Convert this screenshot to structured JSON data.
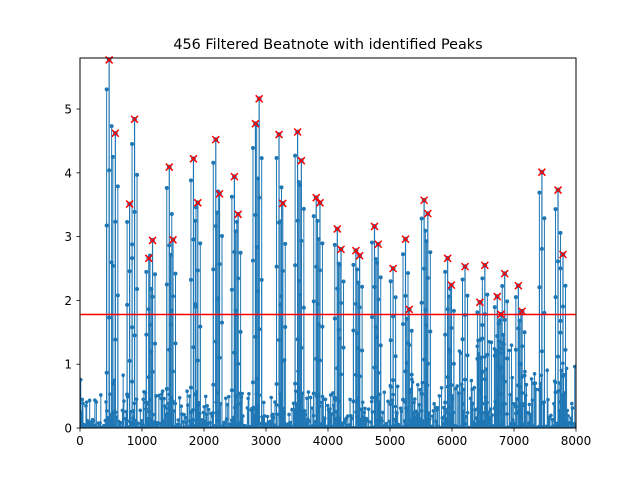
{
  "chart_data": {
    "type": "stem",
    "title": "456 Filtered Beatnote with identified Peaks",
    "xlabel": "",
    "ylabel": "",
    "xlim": [
      0,
      8000
    ],
    "ylim": [
      0,
      5.8
    ],
    "xticks": [
      0,
      1000,
      2000,
      3000,
      4000,
      5000,
      6000,
      7000,
      8000
    ],
    "yticks": [
      0,
      1,
      2,
      3,
      4,
      5
    ],
    "threshold": 1.78,
    "grid": false,
    "legend": "none",
    "colors": {
      "stem": "#1f77b4",
      "threshold": "#ff0000",
      "peak_marker": "#ff0000"
    },
    "peaks": [
      {
        "x": 470,
        "y": 5.77
      },
      {
        "x": 570,
        "y": 4.62
      },
      {
        "x": 800,
        "y": 3.51
      },
      {
        "x": 880,
        "y": 4.84
      },
      {
        "x": 1110,
        "y": 2.66
      },
      {
        "x": 1170,
        "y": 2.94
      },
      {
        "x": 1440,
        "y": 4.09
      },
      {
        "x": 1500,
        "y": 2.95
      },
      {
        "x": 1830,
        "y": 4.22
      },
      {
        "x": 1900,
        "y": 3.53
      },
      {
        "x": 2190,
        "y": 4.52
      },
      {
        "x": 2250,
        "y": 3.67
      },
      {
        "x": 2490,
        "y": 3.94
      },
      {
        "x": 2550,
        "y": 3.35
      },
      {
        "x": 2830,
        "y": 4.77
      },
      {
        "x": 2890,
        "y": 5.16
      },
      {
        "x": 3210,
        "y": 4.6
      },
      {
        "x": 3270,
        "y": 3.52
      },
      {
        "x": 3510,
        "y": 4.64
      },
      {
        "x": 3570,
        "y": 4.19
      },
      {
        "x": 3810,
        "y": 3.61
      },
      {
        "x": 3870,
        "y": 3.53
      },
      {
        "x": 4150,
        "y": 3.12
      },
      {
        "x": 4210,
        "y": 2.8
      },
      {
        "x": 4450,
        "y": 2.78
      },
      {
        "x": 4510,
        "y": 2.7
      },
      {
        "x": 4750,
        "y": 3.16
      },
      {
        "x": 4810,
        "y": 2.88
      },
      {
        "x": 5050,
        "y": 2.5
      },
      {
        "x": 5250,
        "y": 2.96
      },
      {
        "x": 5310,
        "y": 1.86
      },
      {
        "x": 5550,
        "y": 3.57
      },
      {
        "x": 5610,
        "y": 3.36
      },
      {
        "x": 5930,
        "y": 2.66
      },
      {
        "x": 5990,
        "y": 2.24
      },
      {
        "x": 6210,
        "y": 2.53
      },
      {
        "x": 6450,
        "y": 1.97
      },
      {
        "x": 6530,
        "y": 2.55
      },
      {
        "x": 6730,
        "y": 2.06
      },
      {
        "x": 6790,
        "y": 1.78
      },
      {
        "x": 6850,
        "y": 2.42
      },
      {
        "x": 7070,
        "y": 2.23
      },
      {
        "x": 7130,
        "y": 1.83
      },
      {
        "x": 7450,
        "y": 4.01
      },
      {
        "x": 7710,
        "y": 3.73
      },
      {
        "x": 7790,
        "y": 2.72
      }
    ]
  }
}
